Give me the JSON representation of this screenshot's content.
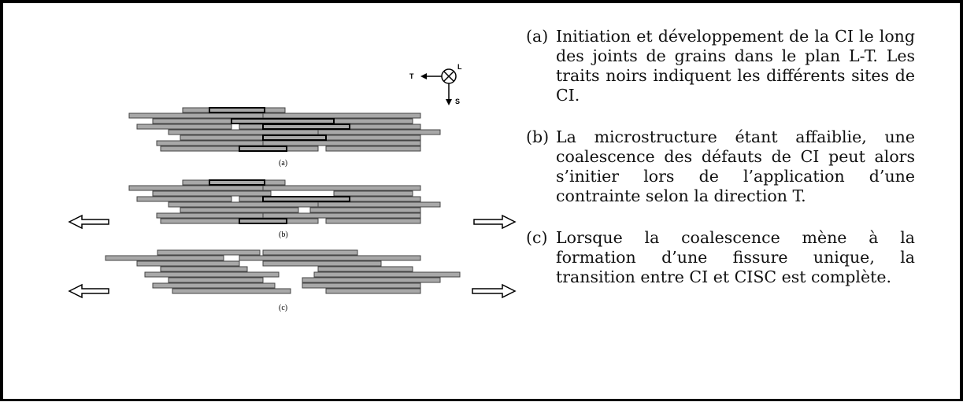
{
  "figure": {
    "axes": {
      "t": "T",
      "l": "L",
      "s": "S"
    },
    "panels": [
      {
        "label": "(a)"
      },
      {
        "label": "(b)"
      },
      {
        "label": "(c)"
      }
    ],
    "items": [
      {
        "marker": "(a)",
        "text": "Initiation et développement de la CI le long des joints de grains dans le plan L-T. Les traits noirs indiquent les différents sites de CI."
      },
      {
        "marker": "(b)",
        "text": "La microstructure étant affaiblie, une coalescence des défauts de CI peut alors s’initier lors de l’application d’une contrainte selon la direction T."
      },
      {
        "marker": "(c)",
        "text": "Lorsque la coalescence mène à la formation d’une fissure unique, la transition entre CI et CISC est complète."
      }
    ]
  }
}
